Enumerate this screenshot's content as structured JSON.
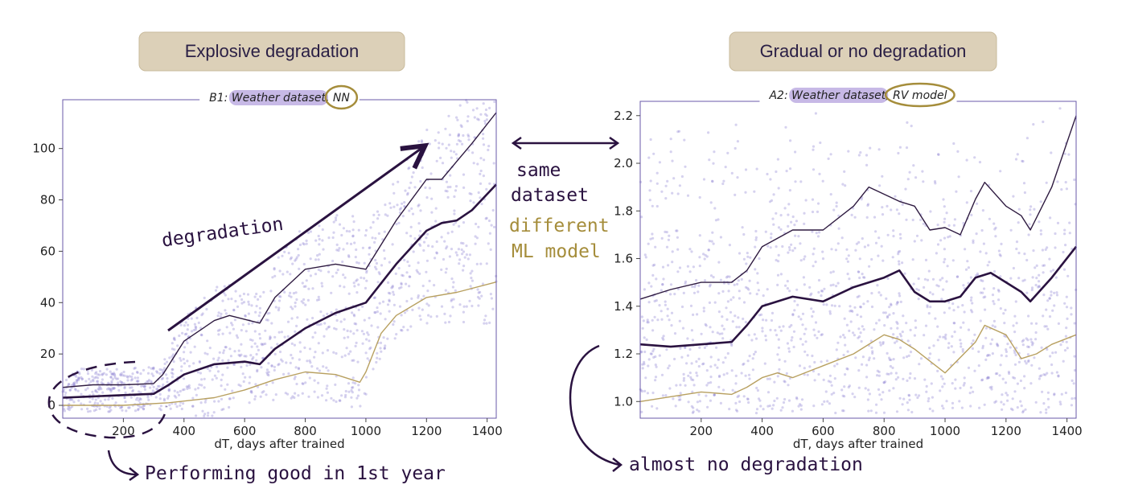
{
  "banners": {
    "left": "Explosive degradation",
    "right": "Gradual or no degradation"
  },
  "annotations": {
    "degradation": "degradation",
    "same_dataset_1": "same",
    "same_dataset_2": "dataset",
    "different_model_1": "different",
    "different_model_2": "ML model",
    "performing_good": "Performing good in 1st year",
    "almost_no": "almost no degradation"
  },
  "colors": {
    "banner_fill": "#dcd0b8",
    "scatter": "#8a7fd0",
    "upper": "#2e1a40",
    "median": "#2a1240",
    "lower": "#b8a060",
    "highlight": "#b9a7e0",
    "circle": "#a58d3b",
    "axis": "#6a5aa8",
    "ink": "#2a1240"
  },
  "chart_data": [
    {
      "type": "scatter",
      "title_parts": {
        "prefix": "B1:",
        "dataset": "Weather dataset",
        "separator": ",",
        "model": "NN"
      },
      "xlabel": "dT, days after trained",
      "ylabel": "",
      "xlim": [
        0,
        1430
      ],
      "ylim": [
        -5,
        119
      ],
      "xticks": [
        200,
        400,
        600,
        800,
        1000,
        1200,
        1400
      ],
      "yticks": [
        0,
        20,
        40,
        60,
        80,
        100
      ],
      "grid": false,
      "series": [
        {
          "role": "upper",
          "x": [
            0,
            100,
            200,
            300,
            330,
            400,
            500,
            550,
            650,
            700,
            800,
            900,
            1000,
            1100,
            1200,
            1250,
            1300,
            1350,
            1430
          ],
          "y": [
            7,
            8,
            8,
            8.5,
            12,
            25,
            33,
            35,
            32,
            42,
            53,
            55,
            53,
            72,
            88,
            88,
            95,
            102,
            114
          ]
        },
        {
          "role": "median",
          "x": [
            0,
            100,
            200,
            300,
            350,
            400,
            500,
            600,
            650,
            700,
            800,
            900,
            1000,
            1100,
            1200,
            1250,
            1300,
            1350,
            1430
          ],
          "y": [
            3,
            3.5,
            4,
            4.5,
            8,
            12,
            16,
            17,
            16,
            22,
            30,
            36,
            40,
            55,
            68,
            71,
            72,
            76,
            86
          ]
        },
        {
          "role": "lower",
          "x": [
            0,
            200,
            350,
            500,
            600,
            700,
            800,
            900,
            980,
            1000,
            1050,
            1100,
            1200,
            1300,
            1430
          ],
          "y": [
            0,
            0,
            1,
            3,
            6,
            10,
            13,
            12,
            9,
            13,
            28,
            35,
            42,
            44,
            48
          ]
        }
      ]
    },
    {
      "type": "scatter",
      "title_parts": {
        "prefix": "A2:",
        "dataset": "Weather dataset",
        "separator": ",",
        "model": "RV model"
      },
      "xlabel": "dT, days after trained",
      "ylabel": "",
      "xlim": [
        0,
        1430
      ],
      "ylim": [
        0.93,
        2.26
      ],
      "xticks": [
        200,
        400,
        600,
        800,
        1000,
        1200,
        1400
      ],
      "yticks": [
        1.0,
        1.2,
        1.4,
        1.6,
        1.8,
        2.0,
        2.2
      ],
      "grid": false,
      "series": [
        {
          "role": "upper",
          "x": [
            0,
            100,
            200,
            300,
            350,
            400,
            500,
            600,
            700,
            750,
            850,
            900,
            950,
            1000,
            1050,
            1100,
            1130,
            1200,
            1250,
            1280,
            1350,
            1430
          ],
          "y": [
            1.43,
            1.47,
            1.5,
            1.5,
            1.55,
            1.65,
            1.72,
            1.72,
            1.82,
            1.9,
            1.84,
            1.82,
            1.72,
            1.73,
            1.7,
            1.85,
            1.92,
            1.82,
            1.78,
            1.72,
            1.9,
            2.2
          ]
        },
        {
          "role": "median",
          "x": [
            0,
            100,
            200,
            300,
            350,
            400,
            500,
            600,
            700,
            800,
            850,
            900,
            950,
            1000,
            1050,
            1100,
            1150,
            1200,
            1250,
            1280,
            1350,
            1430
          ],
          "y": [
            1.24,
            1.23,
            1.24,
            1.25,
            1.32,
            1.4,
            1.44,
            1.42,
            1.48,
            1.52,
            1.55,
            1.46,
            1.42,
            1.42,
            1.44,
            1.52,
            1.54,
            1.5,
            1.46,
            1.42,
            1.52,
            1.65
          ]
        },
        {
          "role": "lower",
          "x": [
            0,
            100,
            200,
            300,
            350,
            400,
            450,
            500,
            600,
            700,
            800,
            850,
            900,
            1000,
            1100,
            1130,
            1200,
            1250,
            1300,
            1350,
            1430
          ],
          "y": [
            1.0,
            1.02,
            1.04,
            1.03,
            1.06,
            1.1,
            1.12,
            1.1,
            1.15,
            1.2,
            1.28,
            1.26,
            1.22,
            1.12,
            1.25,
            1.32,
            1.28,
            1.18,
            1.2,
            1.24,
            1.28
          ]
        }
      ]
    }
  ]
}
